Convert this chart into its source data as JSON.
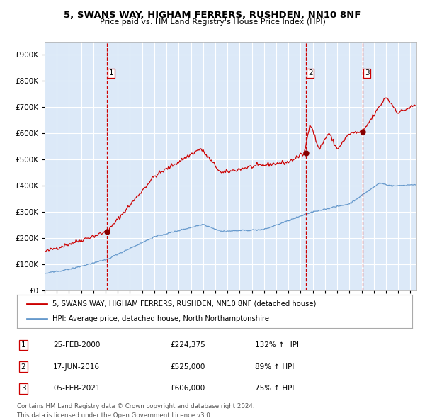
{
  "title": "5, SWANS WAY, HIGHAM FERRERS, RUSHDEN, NN10 8NF",
  "subtitle": "Price paid vs. HM Land Registry's House Price Index (HPI)",
  "legend_label_red": "5, SWANS WAY, HIGHAM FERRERS, RUSHDEN, NN10 8NF (detached house)",
  "legend_label_blue": "HPI: Average price, detached house, North Northamptonshire",
  "footer1": "Contains HM Land Registry data © Crown copyright and database right 2024.",
  "footer2": "This data is licensed under the Open Government Licence v3.0.",
  "sales": [
    {
      "num": 1,
      "date": "25-FEB-2000",
      "price": 224375,
      "pct": "132%",
      "dir": "↑"
    },
    {
      "num": 2,
      "date": "17-JUN-2016",
      "price": 525000,
      "pct": "89%",
      "dir": "↑"
    },
    {
      "num": 3,
      "date": "05-FEB-2021",
      "price": 606000,
      "pct": "75%",
      "dir": "↑"
    }
  ],
  "sale_dates_decimal": [
    2000.14,
    2016.46,
    2021.09
  ],
  "sale_prices": [
    224375,
    525000,
    606000
  ],
  "background_color": "#dce9f8",
  "grid_color": "#ffffff",
  "red_line_color": "#cc0000",
  "blue_line_color": "#6699cc",
  "vline_color": "#cc0000",
  "marker_color": "#880000",
  "ylim": [
    0,
    950000
  ],
  "xlim_start": 1995.0,
  "xlim_end": 2025.5
}
